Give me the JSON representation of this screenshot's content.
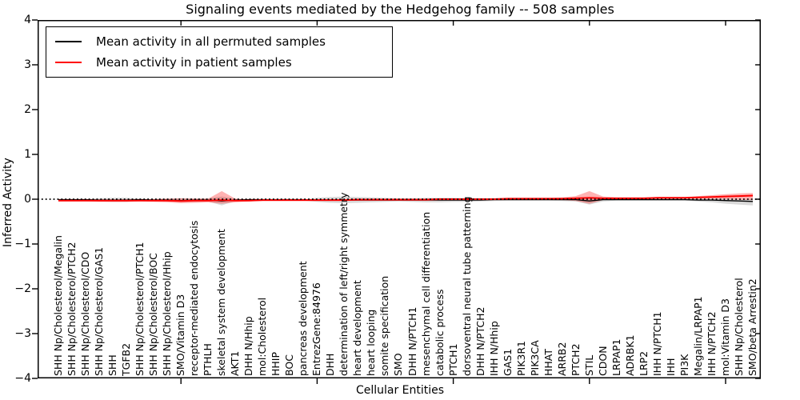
{
  "chart_data": {
    "type": "line",
    "title": "Signaling events mediated by the Hedgehog family -- 508 samples",
    "xlabel": "Cellular Entities",
    "ylabel": "Inferred Activity",
    "ylim": [
      -4,
      4
    ],
    "yticks": [
      -4,
      -3,
      -2,
      -1,
      0,
      1,
      2,
      3,
      4
    ],
    "xtick_samples": [
      10,
      20,
      30,
      40,
      50
    ],
    "grid": false,
    "zero_line_style": "dotted",
    "legend_position": "upper left",
    "sample_count_note": "508 samples",
    "categories": [
      "SHH Np/Cholesterol/Megalin",
      "SHH Np/Cholesterol/PTCH2",
      "SHH Np/Cholesterol/CDO",
      "SHH Np/Cholesterol/GAS1",
      "SHH",
      "TGFB2",
      "SHH Np/Cholesterol/PTCH1",
      "SHH Np/Cholesterol/BOC",
      "SHH Np/Cholesterol/Hhip",
      "SMO/Vitamin D3",
      "receptor-mediated endocytosis",
      "PTHLH",
      "skeletal system development",
      "AKT1",
      "DHH N/Hhip",
      "mol:Cholesterol",
      "HHIP",
      "BOC",
      "pancreas development",
      "EntrezGene:84976",
      "DHH",
      "determination of left/right symmetry",
      "heart development",
      "heart looping",
      "somite specification",
      "SMO",
      "DHH N/PTCH1",
      "mesenchymal cell differentiation",
      "catabolic process",
      "PTCH1",
      "dorsoventral neural tube patterning",
      "DHH N/PTCH2",
      "IHH N/Hhip",
      "GAS1",
      "PIK3R1",
      "PIK3CA",
      "HHAT",
      "ARRB2",
      "PTCH2",
      "STIL",
      "CDON",
      "LRPAP1",
      "ADRBK1",
      "LRP2",
      "IHH N/PTCH1",
      "IHH",
      "PI3K",
      "Megalin/LRPAP1",
      "IHH N/PTCH2",
      "mol:Vitamin D3",
      "SHH Np/Cholesterol",
      "SMO/beta Arrestin2"
    ],
    "series": [
      {
        "name": "Mean activity in all permuted samples",
        "color": "#000000",
        "band_color": "rgba(0,0,0,0.15)",
        "mean": [
          -0.01,
          -0.01,
          -0.01,
          -0.02,
          -0.02,
          -0.02,
          -0.01,
          -0.02,
          -0.02,
          -0.03,
          -0.02,
          -0.02,
          -0.04,
          -0.02,
          -0.01,
          -0.01,
          -0.01,
          -0.01,
          -0.01,
          -0.02,
          -0.02,
          -0.02,
          -0.02,
          -0.02,
          -0.02,
          -0.02,
          -0.02,
          -0.02,
          -0.02,
          -0.02,
          -0.02,
          -0.02,
          -0.01,
          -0.01,
          -0.01,
          -0.01,
          -0.01,
          -0.01,
          -0.01,
          -0.04,
          -0.01,
          -0.01,
          -0.01,
          -0.01,
          -0.01,
          -0.01,
          -0.01,
          -0.02,
          -0.02,
          -0.03,
          -0.04,
          -0.05
        ],
        "band_upper": [
          0.0,
          0.0,
          0.0,
          0.02,
          0.03,
          0.03,
          0.01,
          0.01,
          0.01,
          0.02,
          0.02,
          0.02,
          0.06,
          0.01,
          0.0,
          0.0,
          0.0,
          0.0,
          0.0,
          0.03,
          0.05,
          0.06,
          0.05,
          0.04,
          0.03,
          0.02,
          0.02,
          0.03,
          0.03,
          0.03,
          0.02,
          0.02,
          0.01,
          0.01,
          0.01,
          0.01,
          0.01,
          0.01,
          0.02,
          0.04,
          0.02,
          0.01,
          0.01,
          0.01,
          0.01,
          0.01,
          0.01,
          0.01,
          0.01,
          0.01,
          0.0,
          0.0
        ],
        "band_lower": [
          -0.03,
          -0.03,
          -0.03,
          -0.05,
          -0.06,
          -0.06,
          -0.04,
          -0.04,
          -0.05,
          -0.06,
          -0.06,
          -0.05,
          -0.14,
          -0.04,
          -0.03,
          -0.03,
          -0.03,
          -0.03,
          -0.03,
          -0.06,
          -0.08,
          -0.09,
          -0.08,
          -0.07,
          -0.06,
          -0.05,
          -0.06,
          -0.07,
          -0.07,
          -0.06,
          -0.06,
          -0.05,
          -0.04,
          -0.03,
          -0.03,
          -0.03,
          -0.03,
          -0.04,
          -0.05,
          -0.12,
          -0.05,
          -0.03,
          -0.03,
          -0.03,
          -0.03,
          -0.03,
          -0.03,
          -0.05,
          -0.07,
          -0.1,
          -0.12,
          -0.14
        ]
      },
      {
        "name": "Mean activity in patient samples",
        "color": "#ff0000",
        "band_color": "rgba(255,0,0,0.30)",
        "mean": [
          -0.03,
          -0.03,
          -0.03,
          -0.03,
          -0.03,
          -0.03,
          -0.03,
          -0.03,
          -0.03,
          -0.04,
          -0.03,
          -0.03,
          -0.02,
          -0.03,
          -0.03,
          -0.02,
          -0.02,
          -0.02,
          -0.02,
          -0.02,
          -0.02,
          -0.02,
          -0.01,
          -0.01,
          -0.01,
          -0.01,
          -0.01,
          -0.01,
          0.0,
          0.0,
          0.0,
          0.0,
          0.0,
          0.01,
          0.01,
          0.01,
          0.01,
          0.01,
          0.02,
          0.03,
          0.02,
          0.02,
          0.02,
          0.02,
          0.03,
          0.03,
          0.03,
          0.04,
          0.05,
          0.06,
          0.07,
          0.08
        ],
        "band_upper": [
          -0.01,
          -0.01,
          -0.01,
          -0.01,
          -0.01,
          -0.01,
          -0.01,
          0.0,
          0.01,
          0.02,
          0.01,
          0.01,
          0.18,
          0.01,
          -0.01,
          0.0,
          0.0,
          0.0,
          0.0,
          0.0,
          0.0,
          0.0,
          0.01,
          0.01,
          0.01,
          0.01,
          0.01,
          0.01,
          0.02,
          0.02,
          0.02,
          0.02,
          0.02,
          0.03,
          0.03,
          0.03,
          0.03,
          0.04,
          0.07,
          0.18,
          0.06,
          0.04,
          0.04,
          0.04,
          0.05,
          0.05,
          0.05,
          0.07,
          0.09,
          0.11,
          0.13,
          0.14
        ],
        "band_lower": [
          -0.05,
          -0.05,
          -0.05,
          -0.06,
          -0.06,
          -0.06,
          -0.05,
          -0.06,
          -0.07,
          -0.09,
          -0.08,
          -0.07,
          -0.1,
          -0.07,
          -0.05,
          -0.04,
          -0.04,
          -0.04,
          -0.04,
          -0.04,
          -0.04,
          -0.04,
          -0.03,
          -0.03,
          -0.03,
          -0.03,
          -0.03,
          -0.03,
          -0.02,
          -0.02,
          -0.02,
          -0.02,
          -0.02,
          -0.01,
          -0.01,
          -0.01,
          -0.01,
          -0.02,
          -0.04,
          -0.1,
          -0.02,
          0.0,
          0.0,
          0.0,
          0.01,
          0.01,
          0.01,
          0.01,
          0.01,
          0.0,
          -0.01,
          -0.02
        ]
      }
    ]
  }
}
